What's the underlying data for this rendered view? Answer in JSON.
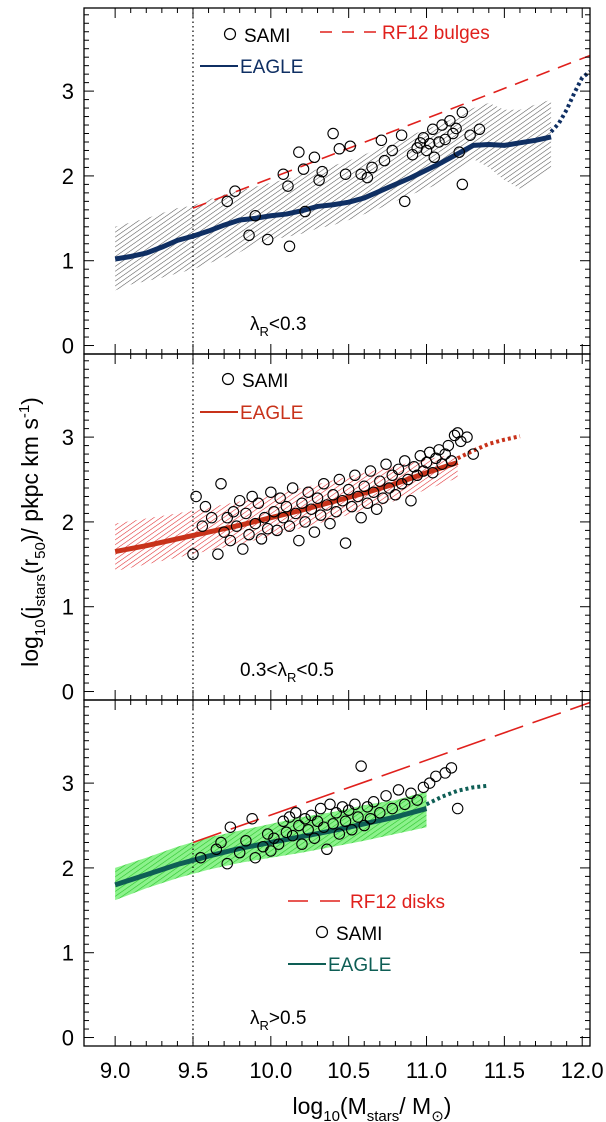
{
  "figure": {
    "ylabel_main": "log",
    "ylabel_sub10": "10",
    "ylabel_mid": "(j",
    "ylabel_substars": "stars",
    "ylabel_mid2": "(r",
    "ylabel_sub50": "50",
    "ylabel_tail": ")/ pkpc km s",
    "ylabel_sup": "-1",
    "ylabel_end": ")",
    "xlabel_main": "log",
    "xlabel_sub10": "10",
    "xlabel_mid": "(M",
    "xlabel_substars": "stars",
    "xlabel_tail": "/ M",
    "xlabel_subsun": "⊙",
    "xlabel_end": ")"
  },
  "chart_data": [
    {
      "type": "scatter",
      "panel": "top",
      "xlim": [
        8.8,
        12.05
      ],
      "ylim": [
        -0.1,
        3.98
      ],
      "xticks": [
        "9.0",
        "9.5",
        "10.0",
        "10.5",
        "11.0",
        "11.5",
        "12.0"
      ],
      "yticks": [
        "0",
        "1",
        "2",
        "3"
      ],
      "vline_x": 9.5,
      "annotation": {
        "lambda": "λ",
        "sub": "R",
        "rest": "<0.3"
      },
      "colors": {
        "eagle": "#0f2f63",
        "band": "#5a5a5a",
        "ref": "#e0201c"
      },
      "legend": {
        "sami": "SAMI",
        "eagle": "EAGLE",
        "ref": "RF12 bulges"
      },
      "eagle_median": {
        "x": [
          9.0,
          9.1,
          9.2,
          9.3,
          9.4,
          9.5,
          9.6,
          9.7,
          9.8,
          9.9,
          10.0,
          10.1,
          10.2,
          10.3,
          10.4,
          10.5,
          10.6,
          10.7,
          10.8,
          10.9,
          11.0,
          11.1,
          11.2,
          11.3,
          11.4,
          11.5,
          11.6,
          11.7,
          11.8
        ],
        "y": [
          1.02,
          1.05,
          1.09,
          1.16,
          1.24,
          1.29,
          1.35,
          1.42,
          1.48,
          1.5,
          1.53,
          1.55,
          1.59,
          1.64,
          1.66,
          1.69,
          1.74,
          1.82,
          1.9,
          1.98,
          2.07,
          2.16,
          2.26,
          2.36,
          2.37,
          2.36,
          2.39,
          2.42,
          2.46
        ]
      },
      "eagle_extrap": {
        "x": [
          11.8,
          11.85,
          11.9,
          11.95,
          12.0,
          12.05
        ],
        "y": [
          2.52,
          2.62,
          2.78,
          2.98,
          3.16,
          3.23
        ]
      },
      "band": {
        "x": [
          9.0,
          9.1,
          9.2,
          9.3,
          9.4,
          9.5,
          9.6,
          9.7,
          9.8,
          9.9,
          10.0,
          10.1,
          10.2,
          10.3,
          10.4,
          10.5,
          10.6,
          10.7,
          10.8,
          10.9,
          11.0,
          11.1,
          11.2,
          11.3,
          11.4,
          11.5,
          11.6,
          11.7,
          11.8
        ],
        "lower": [
          0.65,
          0.72,
          0.76,
          0.8,
          0.85,
          0.9,
          0.97,
          1.03,
          1.1,
          1.2,
          1.25,
          1.28,
          1.32,
          1.38,
          1.42,
          1.48,
          1.55,
          1.62,
          1.7,
          1.78,
          1.85,
          1.92,
          2.05,
          2.2,
          2.1,
          1.95,
          1.85,
          1.95,
          2.1
        ],
        "upper": [
          1.4,
          1.45,
          1.5,
          1.56,
          1.62,
          1.65,
          1.72,
          1.78,
          1.83,
          1.87,
          1.92,
          1.96,
          2.02,
          2.08,
          2.12,
          2.18,
          2.25,
          2.33,
          2.4,
          2.48,
          2.55,
          2.62,
          2.7,
          2.8,
          2.86,
          2.78,
          2.78,
          2.84,
          2.9
        ]
      },
      "ref_line": {
        "x": [
          9.5,
          12.05
        ],
        "y": [
          1.62,
          3.42
        ]
      },
      "points": [
        [
          9.72,
          1.7
        ],
        [
          9.77,
          1.82
        ],
        [
          9.86,
          1.3
        ],
        [
          9.9,
          1.53
        ],
        [
          9.98,
          1.25
        ],
        [
          10.08,
          2.02
        ],
        [
          10.11,
          1.88
        ],
        [
          10.12,
          1.17
        ],
        [
          10.18,
          2.28
        ],
        [
          10.21,
          2.08
        ],
        [
          10.22,
          1.58
        ],
        [
          10.28,
          2.22
        ],
        [
          10.31,
          1.95
        ],
        [
          10.33,
          2.05
        ],
        [
          10.4,
          2.5
        ],
        [
          10.44,
          2.32
        ],
        [
          10.48,
          2.02
        ],
        [
          10.51,
          2.35
        ],
        [
          10.58,
          2.02
        ],
        [
          10.62,
          1.98
        ],
        [
          10.65,
          2.1
        ],
        [
          10.71,
          2.42
        ],
        [
          10.73,
          2.18
        ],
        [
          10.78,
          2.3
        ],
        [
          10.84,
          2.48
        ],
        [
          10.86,
          1.7
        ],
        [
          10.91,
          2.25
        ],
        [
          10.94,
          2.33
        ],
        [
          10.96,
          2.39
        ],
        [
          10.98,
          2.45
        ],
        [
          11.0,
          2.3
        ],
        [
          11.02,
          2.38
        ],
        [
          11.04,
          2.55
        ],
        [
          11.05,
          2.22
        ],
        [
          11.08,
          2.4
        ],
        [
          11.1,
          2.6
        ],
        [
          11.12,
          2.43
        ],
        [
          11.15,
          2.65
        ],
        [
          11.17,
          2.5
        ],
        [
          11.19,
          2.56
        ],
        [
          11.21,
          2.28
        ],
        [
          11.23,
          2.75
        ],
        [
          11.23,
          1.9
        ],
        [
          11.28,
          2.48
        ],
        [
          11.34,
          2.55
        ]
      ]
    },
    {
      "type": "scatter",
      "panel": "middle",
      "xlim": [
        8.8,
        12.05
      ],
      "ylim": [
        -0.1,
        3.98
      ],
      "xticks": [
        "9.0",
        "9.5",
        "10.0",
        "10.5",
        "11.0",
        "11.5",
        "12.0"
      ],
      "yticks": [
        "0",
        "1",
        "2",
        "3"
      ],
      "vline_x": 9.5,
      "annotation": {
        "lambda": "0.3<λ",
        "sub": "R",
        "rest": "<0.5"
      },
      "colors": {
        "eagle": "#c8321a",
        "band": "#e0262a",
        "ref": "#e0201c"
      },
      "legend": {
        "sami": "SAMI",
        "eagle": "EAGLE"
      },
      "eagle_median": {
        "x": [
          9.0,
          9.2,
          9.4,
          9.6,
          9.8,
          10.0,
          10.2,
          10.4,
          10.6,
          10.8,
          11.0,
          11.2
        ],
        "y": [
          1.65,
          1.72,
          1.8,
          1.88,
          1.96,
          2.05,
          2.14,
          2.24,
          2.34,
          2.45,
          2.58,
          2.7
        ]
      },
      "eagle_extrap": {
        "x": [
          11.2,
          11.3,
          11.4,
          11.5,
          11.6
        ],
        "y": [
          2.75,
          2.84,
          2.92,
          2.97,
          3.01
        ]
      },
      "band": {
        "x": [
          9.0,
          9.2,
          9.4,
          9.6,
          9.8,
          10.0,
          10.2,
          10.4,
          10.6,
          10.8,
          11.0,
          11.2
        ],
        "lower": [
          1.42,
          1.5,
          1.58,
          1.66,
          1.74,
          1.83,
          1.93,
          2.03,
          2.14,
          2.25,
          2.38,
          2.52
        ],
        "upper": [
          1.98,
          2.04,
          2.1,
          2.17,
          2.24,
          2.31,
          2.4,
          2.49,
          2.58,
          2.66,
          2.74,
          2.8
        ]
      },
      "points": [
        [
          9.5,
          1.62
        ],
        [
          9.52,
          2.3
        ],
        [
          9.56,
          1.95
        ],
        [
          9.58,
          2.18
        ],
        [
          9.62,
          2.05
        ],
        [
          9.66,
          1.62
        ],
        [
          9.68,
          2.45
        ],
        [
          9.7,
          1.88
        ],
        [
          9.72,
          2.05
        ],
        [
          9.74,
          1.78
        ],
        [
          9.76,
          2.12
        ],
        [
          9.78,
          1.95
        ],
        [
          9.8,
          2.25
        ],
        [
          9.82,
          1.68
        ],
        [
          9.84,
          2.1
        ],
        [
          9.86,
          1.85
        ],
        [
          9.88,
          2.3
        ],
        [
          9.9,
          1.98
        ],
        [
          9.92,
          2.22
        ],
        [
          9.94,
          1.8
        ],
        [
          9.96,
          2.05
        ],
        [
          9.98,
          1.92
        ],
        [
          10.0,
          2.35
        ],
        [
          10.02,
          2.12
        ],
        [
          10.04,
          1.9
        ],
        [
          10.06,
          2.28
        ],
        [
          10.08,
          2.05
        ],
        [
          10.1,
          2.18
        ],
        [
          10.12,
          1.95
        ],
        [
          10.14,
          2.4
        ],
        [
          10.16,
          2.1
        ],
        [
          10.18,
          1.78
        ],
        [
          10.2,
          2.22
        ],
        [
          10.22,
          2.0
        ],
        [
          10.24,
          2.35
        ],
        [
          10.26,
          2.15
        ],
        [
          10.28,
          1.88
        ],
        [
          10.3,
          2.28
        ],
        [
          10.32,
          2.08
        ],
        [
          10.34,
          2.45
        ],
        [
          10.36,
          2.2
        ],
        [
          10.38,
          1.98
        ],
        [
          10.4,
          2.32
        ],
        [
          10.42,
          2.12
        ],
        [
          10.44,
          2.5
        ],
        [
          10.46,
          2.25
        ],
        [
          10.48,
          1.75
        ],
        [
          10.5,
          2.38
        ],
        [
          10.52,
          2.18
        ],
        [
          10.54,
          2.55
        ],
        [
          10.56,
          2.3
        ],
        [
          10.58,
          2.05
        ],
        [
          10.6,
          2.42
        ],
        [
          10.62,
          2.22
        ],
        [
          10.64,
          2.6
        ],
        [
          10.66,
          2.35
        ],
        [
          10.68,
          2.15
        ],
        [
          10.7,
          2.48
        ],
        [
          10.72,
          2.28
        ],
        [
          10.74,
          2.68
        ],
        [
          10.76,
          2.4
        ],
        [
          10.78,
          2.55
        ],
        [
          10.8,
          2.32
        ],
        [
          10.82,
          2.62
        ],
        [
          10.84,
          2.45
        ],
        [
          10.86,
          2.72
        ],
        [
          10.88,
          2.5
        ],
        [
          10.9,
          2.25
        ],
        [
          10.92,
          2.65
        ],
        [
          10.94,
          2.55
        ],
        [
          10.96,
          2.78
        ],
        [
          10.98,
          2.6
        ],
        [
          11.0,
          2.7
        ],
        [
          11.02,
          2.82
        ],
        [
          11.04,
          2.58
        ],
        [
          11.06,
          2.75
        ],
        [
          11.08,
          2.85
        ],
        [
          11.1,
          2.68
        ],
        [
          11.12,
          2.8
        ],
        [
          11.14,
          2.9
        ],
        [
          11.16,
          2.72
        ],
        [
          11.18,
          3.02
        ],
        [
          11.2,
          3.05
        ],
        [
          11.22,
          2.95
        ],
        [
          11.26,
          3.0
        ],
        [
          11.3,
          2.8
        ]
      ]
    },
    {
      "type": "scatter",
      "panel": "bottom",
      "xlim": [
        8.8,
        12.05
      ],
      "ylim": [
        -0.1,
        3.98
      ],
      "xticks": [
        "9.0",
        "9.5",
        "10.0",
        "10.5",
        "11.0",
        "11.5",
        "12.0"
      ],
      "yticks": [
        "0",
        "1",
        "2",
        "3"
      ],
      "vline_x": 9.5,
      "annotation": {
        "lambda": "λ",
        "sub": "R",
        "rest": ">0.5"
      },
      "colors": {
        "eagle": "#0e5e55",
        "band": "#3fd23f",
        "ref": "#e0201c"
      },
      "legend": {
        "sami": "SAMI",
        "eagle": "EAGLE",
        "ref": "RF12 disks"
      },
      "eagle_median": {
        "x": [
          9.0,
          9.2,
          9.4,
          9.6,
          9.8,
          10.0,
          10.2,
          10.4,
          10.6,
          10.8,
          11.0
        ],
        "y": [
          1.8,
          1.92,
          2.04,
          2.14,
          2.23,
          2.3,
          2.37,
          2.44,
          2.52,
          2.6,
          2.7
        ]
      },
      "eagle_extrap": {
        "x": [
          11.0,
          11.1,
          11.2,
          11.3,
          11.4
        ],
        "y": [
          2.75,
          2.84,
          2.91,
          2.95,
          2.97
        ]
      },
      "band": {
        "x": [
          9.0,
          9.2,
          9.4,
          9.6,
          9.8,
          10.0,
          10.2,
          10.4,
          10.6,
          10.8,
          11.0
        ],
        "lower": [
          1.62,
          1.76,
          1.88,
          1.98,
          2.06,
          2.12,
          2.18,
          2.25,
          2.32,
          2.4,
          2.48
        ],
        "upper": [
          2.0,
          2.12,
          2.25,
          2.36,
          2.44,
          2.52,
          2.6,
          2.66,
          2.74,
          2.8,
          2.9
        ]
      },
      "ref_line": {
        "x": [
          9.5,
          12.05
        ],
        "y": [
          2.3,
          3.95
        ]
      },
      "points": [
        [
          9.55,
          2.12
        ],
        [
          9.65,
          2.22
        ],
        [
          9.68,
          2.3
        ],
        [
          9.72,
          2.05
        ],
        [
          9.74,
          2.48
        ],
        [
          9.8,
          2.18
        ],
        [
          9.84,
          2.32
        ],
        [
          9.88,
          2.58
        ],
        [
          9.9,
          2.12
        ],
        [
          9.95,
          2.25
        ],
        [
          9.98,
          2.4
        ],
        [
          10.0,
          2.2
        ],
        [
          10.02,
          2.35
        ],
        [
          10.05,
          2.28
        ],
        [
          10.08,
          2.55
        ],
        [
          10.1,
          2.42
        ],
        [
          10.12,
          2.6
        ],
        [
          10.14,
          2.38
        ],
        [
          10.16,
          2.65
        ],
        [
          10.18,
          2.5
        ],
        [
          10.2,
          2.28
        ],
        [
          10.22,
          2.58
        ],
        [
          10.24,
          2.45
        ],
        [
          10.26,
          2.62
        ],
        [
          10.28,
          2.35
        ],
        [
          10.3,
          2.55
        ],
        [
          10.32,
          2.7
        ],
        [
          10.34,
          2.48
        ],
        [
          10.36,
          2.22
        ],
        [
          10.38,
          2.75
        ],
        [
          10.4,
          2.52
        ],
        [
          10.42,
          2.65
        ],
        [
          10.44,
          2.4
        ],
        [
          10.46,
          2.72
        ],
        [
          10.48,
          2.55
        ],
        [
          10.5,
          2.68
        ],
        [
          10.52,
          2.45
        ],
        [
          10.54,
          2.75
        ],
        [
          10.56,
          2.6
        ],
        [
          10.58,
          3.2
        ],
        [
          10.6,
          2.5
        ],
        [
          10.62,
          2.72
        ],
        [
          10.64,
          2.58
        ],
        [
          10.66,
          2.78
        ],
        [
          10.7,
          2.65
        ],
        [
          10.74,
          2.85
        ],
        [
          10.78,
          2.7
        ],
        [
          10.82,
          2.92
        ],
        [
          10.86,
          2.75
        ],
        [
          10.9,
          2.88
        ],
        [
          10.94,
          2.8
        ],
        [
          10.98,
          2.95
        ],
        [
          11.02,
          3.0
        ],
        [
          11.06,
          3.08
        ],
        [
          11.12,
          3.12
        ],
        [
          11.16,
          3.18
        ],
        [
          11.2,
          2.7
        ]
      ]
    }
  ]
}
